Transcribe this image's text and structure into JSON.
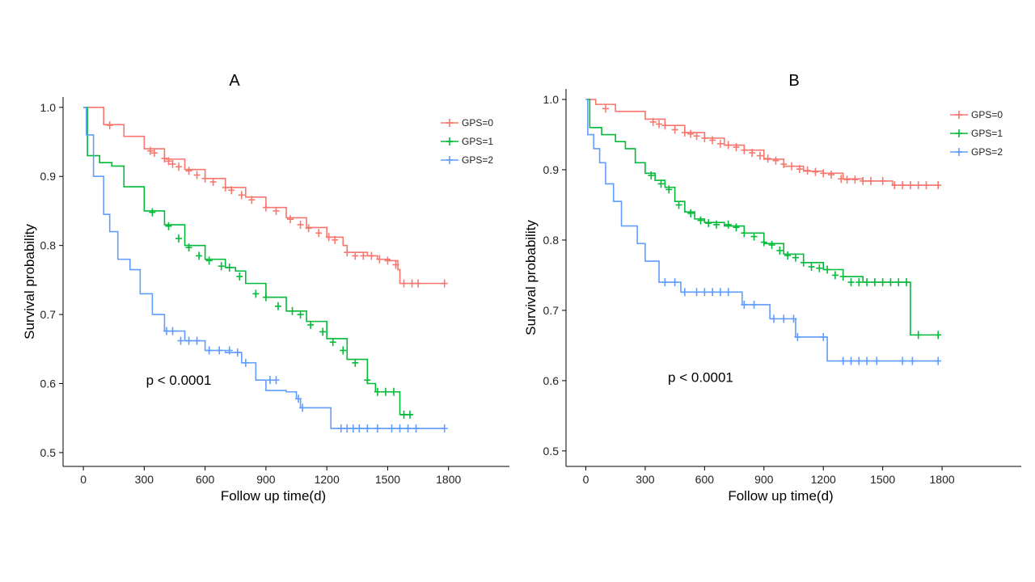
{
  "chart_data": [
    {
      "type": "line",
      "title": "A",
      "xlabel": "Follow up time(d)",
      "ylabel": "Survival probability",
      "xlim": [
        -100,
        2100
      ],
      "ylim": [
        0.48,
        1.015
      ],
      "xticks": [
        0,
        300,
        600,
        900,
        1200,
        1500,
        1800
      ],
      "yticks": [
        0.5,
        0.6,
        0.7,
        0.8,
        0.9,
        1.0
      ],
      "ytick_labels": [
        "0.5",
        "0.6",
        "0.7",
        "0.8",
        "0.9",
        "1.0"
      ],
      "annotation": "p < 0.0001",
      "annotation_pos": [
        470,
        0.598
      ],
      "legend": [
        "GPS=0",
        "GPS=1",
        "GPS=2"
      ],
      "series": [
        {
          "name": "GPS=0",
          "color": "#F8766D",
          "x": [
            0,
            100,
            200,
            300,
            400,
            500,
            600,
            700,
            800,
            900,
            1000,
            1100,
            1200,
            1280,
            1300,
            1400,
            1450,
            1510,
            1550,
            1560,
            1780
          ],
          "y": [
            1.0,
            0.975,
            0.958,
            0.94,
            0.925,
            0.91,
            0.897,
            0.884,
            0.87,
            0.855,
            0.84,
            0.826,
            0.812,
            0.8,
            0.79,
            0.785,
            0.78,
            0.778,
            0.765,
            0.745,
            0.745
          ],
          "censor_x": [
            130,
            330,
            350,
            400,
            420,
            440,
            470,
            520,
            560,
            600,
            640,
            700,
            730,
            780,
            830,
            900,
            950,
            1020,
            1070,
            1110,
            1160,
            1210,
            1240,
            1300,
            1340,
            1380,
            1420,
            1460,
            1500,
            1540,
            1580,
            1620,
            1650,
            1780
          ],
          "censor_y": [
            0.974,
            0.937,
            0.934,
            0.926,
            0.922,
            0.918,
            0.914,
            0.908,
            0.902,
            0.897,
            0.892,
            0.884,
            0.88,
            0.873,
            0.866,
            0.855,
            0.85,
            0.838,
            0.83,
            0.825,
            0.818,
            0.812,
            0.808,
            0.79,
            0.785,
            0.785,
            0.785,
            0.78,
            0.778,
            0.772,
            0.745,
            0.745,
            0.745,
            0.745
          ]
        },
        {
          "name": "GPS=1",
          "color": "#00BA38",
          "x": [
            0,
            20,
            80,
            140,
            200,
            300,
            400,
            500,
            600,
            700,
            750,
            800,
            900,
            1000,
            1100,
            1200,
            1300,
            1400,
            1440,
            1550,
            1560,
            1620
          ],
          "y": [
            1.0,
            0.93,
            0.92,
            0.915,
            0.885,
            0.85,
            0.83,
            0.8,
            0.78,
            0.768,
            0.763,
            0.745,
            0.725,
            0.705,
            0.69,
            0.665,
            0.635,
            0.6,
            0.588,
            0.588,
            0.555,
            0.555
          ],
          "censor_x": [
            340,
            420,
            470,
            520,
            570,
            620,
            680,
            720,
            770,
            850,
            900,
            960,
            1030,
            1070,
            1120,
            1180,
            1230,
            1280,
            1340,
            1400,
            1450,
            1490,
            1530,
            1580,
            1610
          ],
          "censor_y": [
            0.848,
            0.828,
            0.81,
            0.797,
            0.785,
            0.778,
            0.77,
            0.768,
            0.755,
            0.73,
            0.725,
            0.712,
            0.705,
            0.7,
            0.685,
            0.675,
            0.66,
            0.648,
            0.63,
            0.605,
            0.588,
            0.588,
            0.588,
            0.555,
            0.555
          ]
        },
        {
          "name": "GPS=2",
          "color": "#619CFF",
          "x": [
            0,
            15,
            50,
            100,
            130,
            170,
            230,
            280,
            340,
            400,
            500,
            600,
            700,
            780,
            850,
            900,
            1000,
            1050,
            1070,
            1200,
            1220,
            1780
          ],
          "y": [
            1.0,
            0.96,
            0.9,
            0.845,
            0.82,
            0.78,
            0.765,
            0.73,
            0.7,
            0.676,
            0.662,
            0.648,
            0.645,
            0.63,
            0.605,
            0.59,
            0.588,
            0.578,
            0.565,
            0.565,
            0.535,
            0.535
          ],
          "censor_x": [
            410,
            440,
            480,
            520,
            560,
            620,
            670,
            720,
            760,
            800,
            920,
            950,
            1060,
            1080,
            1270,
            1300,
            1330,
            1360,
            1400,
            1450,
            1520,
            1560,
            1600,
            1640,
            1780
          ],
          "censor_y": [
            0.676,
            0.676,
            0.662,
            0.662,
            0.662,
            0.648,
            0.648,
            0.648,
            0.645,
            0.63,
            0.605,
            0.605,
            0.578,
            0.565,
            0.535,
            0.535,
            0.535,
            0.535,
            0.535,
            0.535,
            0.535,
            0.535,
            0.535,
            0.535,
            0.535
          ]
        }
      ]
    },
    {
      "type": "line",
      "title": "B",
      "xlabel": "Follow up time(d)",
      "ylabel": "Survival probability",
      "xlim": [
        -100,
        2200
      ],
      "ylim": [
        0.478,
        1.015
      ],
      "xticks": [
        0,
        300,
        600,
        900,
        1200,
        1500,
        1800
      ],
      "yticks": [
        0.5,
        0.6,
        0.7,
        0.8,
        0.9,
        1.0
      ],
      "ytick_labels": [
        "0.5",
        "0.6",
        "0.7",
        "0.8",
        "0.9",
        "1.0"
      ],
      "annotation": "p < 0.0001",
      "annotation_pos": [
        580,
        0.598
      ],
      "legend": [
        "GPS=0",
        "GPS=1",
        "GPS=2"
      ],
      "series": [
        {
          "name": "GPS=0",
          "color": "#F8766D",
          "x": [
            0,
            50,
            150,
            300,
            400,
            500,
            600,
            700,
            800,
            900,
            1000,
            1100,
            1200,
            1300,
            1400,
            1550,
            1780
          ],
          "y": [
            1.0,
            0.993,
            0.983,
            0.972,
            0.963,
            0.953,
            0.945,
            0.935,
            0.928,
            0.915,
            0.905,
            0.898,
            0.895,
            0.887,
            0.884,
            0.878,
            0.878
          ],
          "censor_x": [
            100,
            340,
            370,
            400,
            450,
            500,
            530,
            560,
            600,
            640,
            680,
            720,
            760,
            800,
            840,
            880,
            920,
            960,
            1000,
            1040,
            1080,
            1120,
            1160,
            1200,
            1240,
            1290,
            1320,
            1360,
            1400,
            1440,
            1500,
            1560,
            1600,
            1640,
            1680,
            1720,
            1780
          ],
          "censor_y": [
            0.987,
            0.968,
            0.965,
            0.963,
            0.957,
            0.953,
            0.951,
            0.948,
            0.945,
            0.942,
            0.937,
            0.935,
            0.932,
            0.928,
            0.924,
            0.92,
            0.916,
            0.913,
            0.908,
            0.905,
            0.901,
            0.899,
            0.897,
            0.895,
            0.893,
            0.887,
            0.886,
            0.886,
            0.884,
            0.884,
            0.884,
            0.878,
            0.878,
            0.878,
            0.878,
            0.878,
            0.878
          ]
        },
        {
          "name": "GPS=1",
          "color": "#00BA38",
          "x": [
            0,
            20,
            80,
            150,
            200,
            250,
            300,
            350,
            400,
            450,
            500,
            550,
            600,
            700,
            800,
            900,
            1000,
            1100,
            1200,
            1300,
            1400,
            1500,
            1630,
            1640,
            1780
          ],
          "y": [
            1.0,
            0.96,
            0.95,
            0.94,
            0.93,
            0.91,
            0.895,
            0.885,
            0.875,
            0.855,
            0.84,
            0.83,
            0.825,
            0.82,
            0.81,
            0.795,
            0.78,
            0.768,
            0.758,
            0.748,
            0.74,
            0.74,
            0.74,
            0.665,
            0.665
          ],
          "censor_x": [
            330,
            380,
            420,
            470,
            530,
            580,
            620,
            660,
            720,
            760,
            800,
            850,
            900,
            940,
            980,
            1020,
            1060,
            1100,
            1140,
            1180,
            1220,
            1260,
            1300,
            1340,
            1380,
            1420,
            1460,
            1500,
            1540,
            1580,
            1620,
            1680,
            1780
          ],
          "censor_y": [
            0.892,
            0.88,
            0.872,
            0.85,
            0.838,
            0.828,
            0.824,
            0.822,
            0.822,
            0.818,
            0.81,
            0.805,
            0.797,
            0.793,
            0.785,
            0.778,
            0.775,
            0.768,
            0.762,
            0.76,
            0.758,
            0.75,
            0.748,
            0.74,
            0.74,
            0.74,
            0.74,
            0.74,
            0.74,
            0.74,
            0.74,
            0.665,
            0.665
          ]
        },
        {
          "name": "GPS=2",
          "color": "#619CFF",
          "x": [
            0,
            10,
            40,
            70,
            100,
            140,
            180,
            260,
            300,
            370,
            480,
            790,
            930,
            1060,
            1220,
            1780
          ],
          "y": [
            1.0,
            0.95,
            0.93,
            0.91,
            0.88,
            0.855,
            0.82,
            0.795,
            0.77,
            0.74,
            0.726,
            0.708,
            0.688,
            0.662,
            0.628,
            0.628
          ],
          "censor_x": [
            400,
            450,
            500,
            560,
            600,
            640,
            680,
            720,
            800,
            850,
            950,
            1000,
            1050,
            1070,
            1200,
            1300,
            1340,
            1380,
            1420,
            1470,
            1600,
            1650,
            1780
          ],
          "censor_y": [
            0.74,
            0.74,
            0.726,
            0.726,
            0.726,
            0.726,
            0.726,
            0.726,
            0.708,
            0.708,
            0.688,
            0.688,
            0.688,
            0.662,
            0.662,
            0.628,
            0.628,
            0.628,
            0.628,
            0.628,
            0.628,
            0.628,
            0.628
          ]
        }
      ]
    }
  ]
}
